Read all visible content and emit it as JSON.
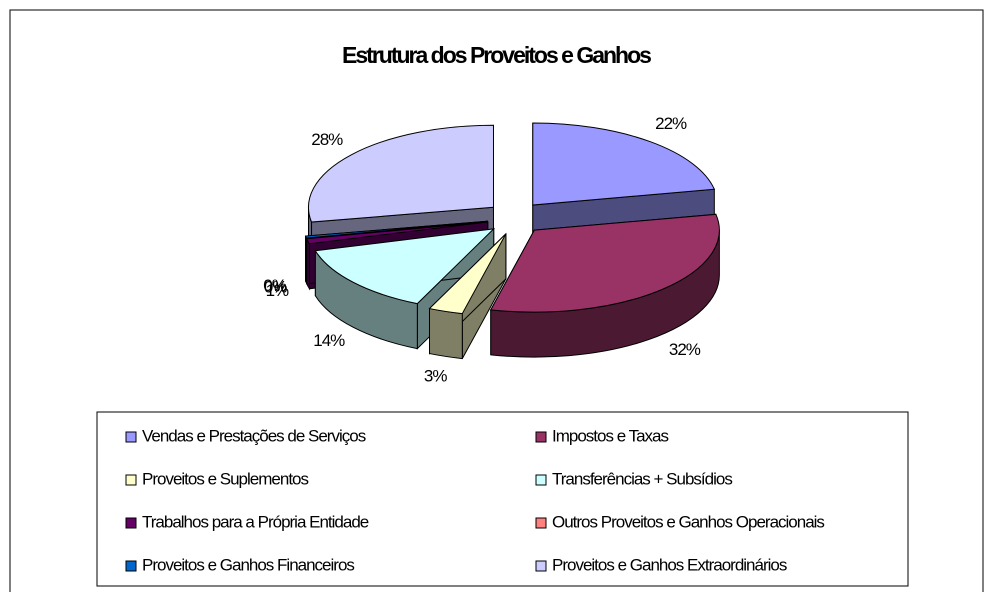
{
  "chart_data": {
    "type": "pie3d",
    "title": "Estrutura dos Proveitos e Ganhos",
    "categories": [
      "Vendas e Prestações de Serviços",
      "Impostos e Taxas",
      "Proveitos e Suplementos",
      "Transferências + Subsídios",
      "Trabalhos para a Própria Entidade",
      "Outros Proveitos e Ganhos Operacionais",
      "Proveitos e Ganhos Financeiros",
      "Proveitos e Ganhos Extraordinários"
    ],
    "values": [
      22,
      32,
      3,
      14,
      1,
      0,
      0.4,
      28
    ],
    "value_labels": [
      "22%",
      "32%",
      "3%",
      "14%",
      "1%",
      "0%",
      "0%",
      "28%"
    ],
    "colors": [
      "#9999ff",
      "#993366",
      "#ffffcc",
      "#ccffff",
      "#660066",
      "#ff8080",
      "#0066cc",
      "#ccccff"
    ],
    "legend": "bottom"
  }
}
